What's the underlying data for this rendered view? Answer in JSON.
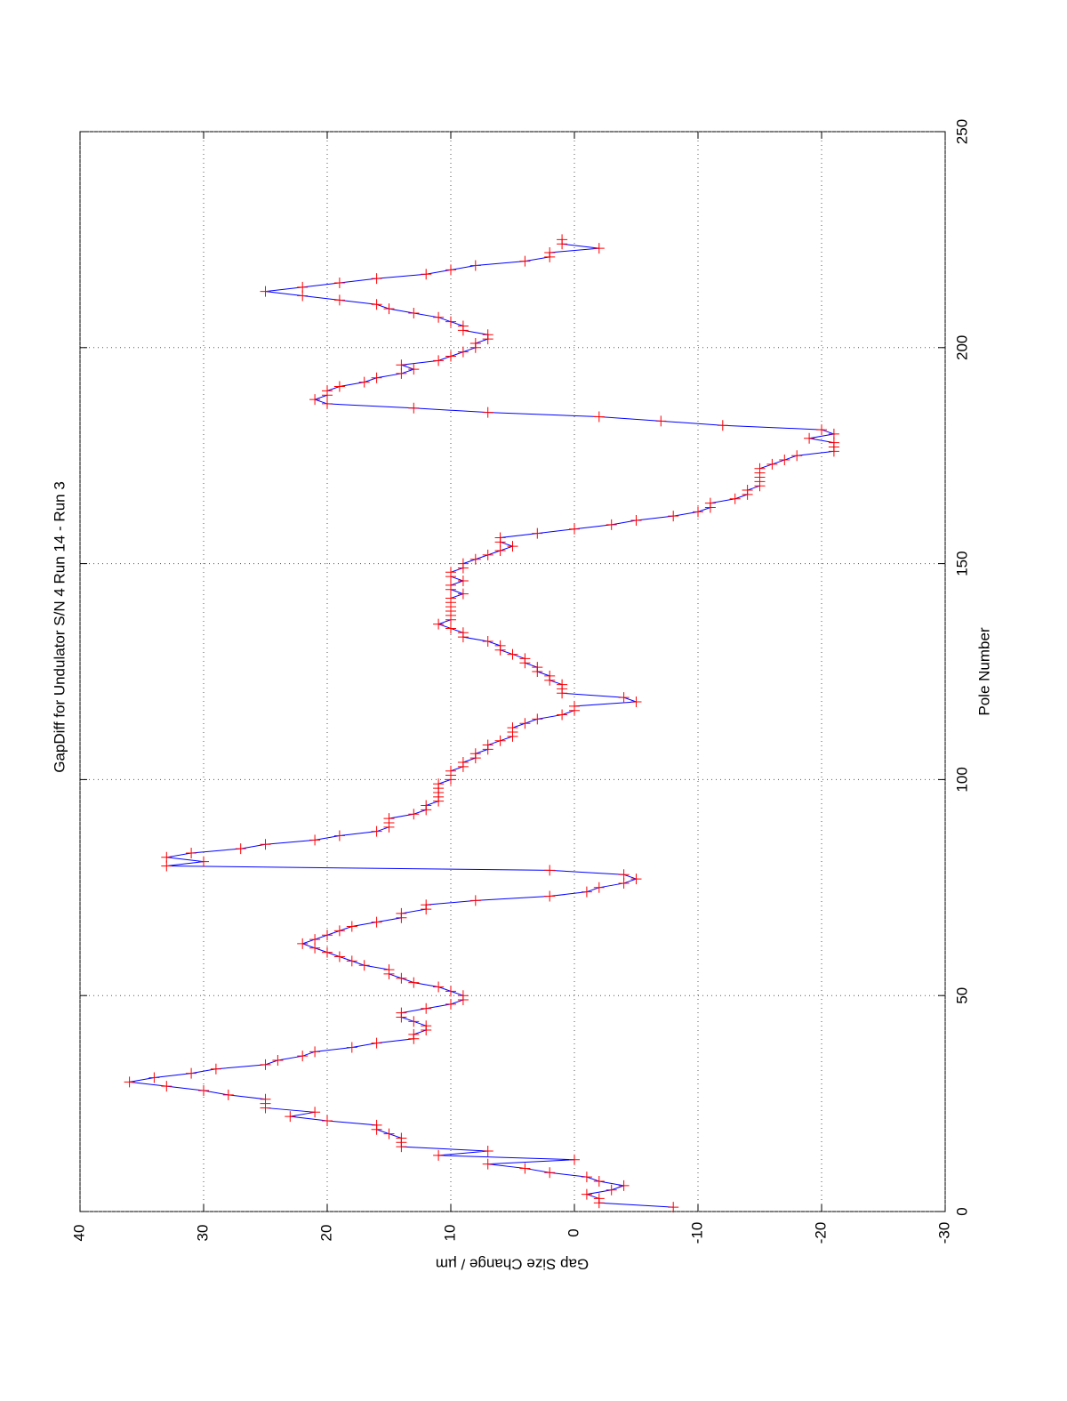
{
  "chart_data": {
    "type": "line",
    "title": "GapDiff  for Undulator S/N 4 Run 14 - Run 3",
    "x_label": "Pole Number",
    "y_label": "Gap Size Change / µm",
    "x": [
      1,
      2,
      3,
      4,
      5,
      6,
      7,
      8,
      9,
      10,
      11,
      12,
      13,
      14,
      15,
      16,
      17,
      18,
      19,
      20,
      21,
      22,
      23,
      24,
      25,
      26,
      27,
      28,
      29,
      30,
      31,
      32,
      33,
      34,
      35,
      36,
      37,
      38,
      39,
      40,
      41,
      42,
      43,
      44,
      45,
      46,
      47,
      48,
      49,
      50,
      51,
      52,
      53,
      54,
      55,
      56,
      57,
      58,
      59,
      60,
      61,
      62,
      63,
      64,
      65,
      66,
      67,
      68,
      69,
      70,
      71,
      72,
      73,
      74,
      75,
      76,
      77,
      78,
      79,
      80,
      81,
      82,
      83,
      84,
      85,
      86,
      87,
      88,
      89,
      90,
      91,
      92,
      93,
      94,
      95,
      96,
      97,
      98,
      99,
      100,
      101,
      102,
      103,
      104,
      105,
      106,
      107,
      108,
      109,
      110,
      111,
      112,
      113,
      114,
      115,
      116,
      117,
      118,
      119,
      120,
      121,
      122,
      123,
      124,
      125,
      126,
      127,
      128,
      129,
      130,
      131,
      132,
      133,
      134,
      135,
      136,
      137,
      138,
      139,
      140,
      141,
      142,
      143,
      144,
      145,
      146,
      147,
      148,
      149,
      150,
      151,
      152,
      153,
      154,
      155,
      156,
      157,
      158,
      159,
      160,
      161,
      162,
      163,
      164,
      165,
      166,
      167,
      168,
      169,
      170,
      171,
      172,
      173,
      174,
      175,
      176,
      177,
      178,
      179,
      180,
      181,
      182,
      183,
      184,
      185,
      186,
      187,
      188,
      189,
      190,
      191,
      192,
      193,
      194,
      195,
      196,
      197,
      198,
      199,
      200,
      201,
      202,
      203,
      204,
      205,
      206,
      207,
      208,
      209,
      210,
      211,
      212,
      213,
      214,
      215,
      216,
      217,
      218,
      219,
      220,
      221,
      222,
      223,
      224,
      225
    ],
    "series": [
      {
        "name": "GapDiff",
        "color": "#0000ff",
        "marker_color": "#ff0000",
        "values": [
          -8,
          -2,
          -2,
          -1,
          -3,
          -4,
          -2,
          -1,
          2,
          4,
          7,
          0,
          11,
          7,
          14,
          14,
          14,
          15,
          16,
          16,
          20,
          23,
          21,
          25,
          25,
          25,
          28,
          30,
          33,
          36,
          34,
          31,
          29,
          25,
          24,
          22,
          21,
          18,
          16,
          13,
          13,
          12,
          12,
          13,
          14,
          14,
          12,
          10,
          9,
          9,
          10,
          11,
          13,
          14,
          15,
          15,
          17,
          18,
          19,
          20,
          21,
          22,
          21,
          20,
          19,
          18,
          16,
          14,
          14,
          12,
          12,
          8,
          2,
          -1,
          -2,
          -4,
          -5,
          -4,
          2,
          33,
          30,
          33,
          31,
          27,
          25,
          21,
          19,
          16,
          15,
          15,
          15,
          13,
          12,
          12,
          11,
          11,
          11,
          11,
          11,
          10,
          10,
          10,
          9,
          9,
          8,
          8,
          7,
          7,
          6,
          5,
          5,
          5,
          4,
          3,
          1,
          0,
          0,
          -5,
          -4,
          1,
          1,
          1,
          2,
          2,
          3,
          3,
          4,
          4,
          5,
          6,
          6,
          7,
          9,
          9,
          10,
          11,
          10,
          10,
          10,
          10,
          10,
          10,
          9,
          10,
          10,
          9,
          10,
          10,
          9,
          9,
          8,
          7,
          6,
          5,
          6,
          6,
          3,
          0,
          -3,
          -5,
          -8,
          -10,
          -11,
          -11,
          -13,
          -14,
          -14,
          -15,
          -15,
          -15,
          -15,
          -15,
          -16,
          -17,
          -18,
          -21,
          -21,
          -21,
          -19,
          -21,
          -20,
          -12,
          -7,
          -2,
          7,
          13,
          20,
          21,
          20,
          20,
          19,
          17,
          16,
          14,
          13,
          14,
          11,
          10,
          9,
          8,
          8,
          7,
          7,
          9,
          9,
          10,
          11,
          13,
          15,
          16,
          19,
          22,
          25,
          22,
          19,
          16,
          12,
          10,
          8,
          4,
          2,
          2,
          -2,
          1,
          1
        ]
      }
    ],
    "xlim": [
      0,
      250
    ],
    "xticks": [
      0,
      50,
      100,
      150,
      200,
      250
    ],
    "ylim": [
      -30,
      40
    ],
    "yticks": [
      -30,
      -20,
      -10,
      0,
      10,
      20,
      30,
      40
    ],
    "grid": true
  }
}
